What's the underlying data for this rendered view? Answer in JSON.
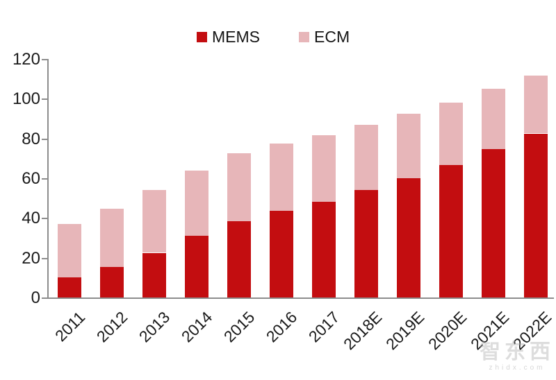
{
  "page": {
    "background": "#ffffff"
  },
  "legend": {
    "items": [
      {
        "label": "MEMS",
        "swatch_color": "#c30d10"
      },
      {
        "label": "ECM",
        "swatch_color": "#e7b6b9"
      }
    ]
  },
  "watermark": {
    "line1": "智东西",
    "line2": "zhidx.com"
  },
  "chart_data": {
    "type": "bar",
    "stacked": true,
    "title": "",
    "xlabel": "",
    "ylabel": "",
    "categories": [
      "2011",
      "2012",
      "2013",
      "2014",
      "2015",
      "2016",
      "2017",
      "2018E",
      "2019E",
      "2020E",
      "2021E",
      "2022E"
    ],
    "series": [
      {
        "name": "MEMS",
        "color": "#c30d10",
        "values": [
          10,
          15.5,
          22.5,
          31,
          38.5,
          43.5,
          48,
          54,
          60,
          66.5,
          74.5,
          82.5
        ]
      },
      {
        "name": "ECM",
        "color": "#e7b6b9",
        "values": [
          27,
          29,
          31.5,
          33,
          34,
          34,
          33.5,
          33,
          32.5,
          31.5,
          30.5,
          29
        ]
      }
    ],
    "totals": [
      37,
      44.5,
      54,
      64,
      72.5,
      77.5,
      81.5,
      87,
      92.5,
      98,
      105,
      111.5
    ],
    "ylim": [
      0,
      120
    ],
    "yticks": [
      0,
      20,
      40,
      60,
      80,
      100,
      120
    ],
    "grid": false,
    "legend_position": "top",
    "axis_color": "#8c8c8c",
    "label_color": "#1a1a1a"
  }
}
